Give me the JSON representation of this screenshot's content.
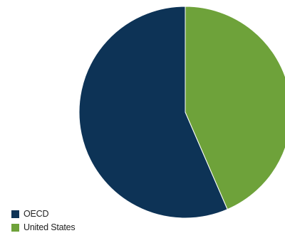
{
  "chart_data": {
    "type": "pie",
    "series": [
      {
        "name": "OECD",
        "value": 56.5,
        "color": "#0d3356"
      },
      {
        "name": "United States",
        "value": 43.5,
        "color": "#6ea23a"
      }
    ],
    "start": "top",
    "direction": "clockwise",
    "order": "United States first",
    "legend_position": "bottom-left"
  }
}
